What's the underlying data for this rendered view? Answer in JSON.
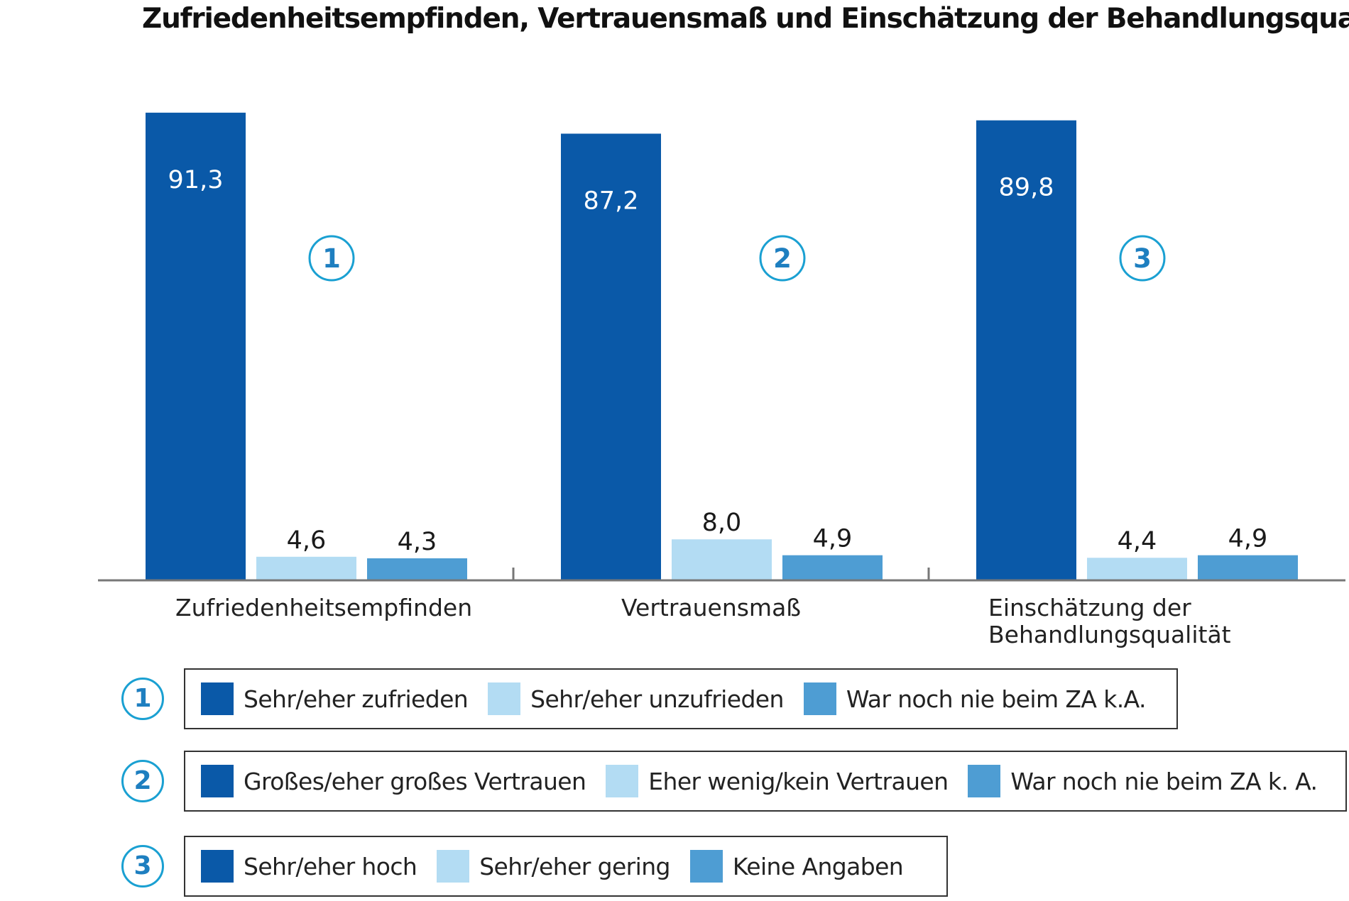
{
  "chart_data": {
    "type": "bar",
    "title": "Zufriedenheitsempfinden, Vertrauensmaß und Einschätzung der Behandlungsqualität",
    "categories": [
      "Zufriedenheitsempfinden",
      "Vertrauensmaß",
      "Einschätzung der Behandlungsqualität"
    ],
    "category_marks": [
      "1",
      "2",
      "3"
    ],
    "series": [
      {
        "values": [
          91.3,
          87.2,
          89.8
        ],
        "labels": [
          "91,3",
          "87,2",
          "89,8"
        ],
        "color": "#0a59a8"
      },
      {
        "values": [
          4.6,
          8.0,
          4.4
        ],
        "labels": [
          "4,6",
          "8,0",
          "4,4"
        ],
        "color": "#b3dcf3"
      },
      {
        "values": [
          4.3,
          4.9,
          4.9
        ],
        "labels": [
          "4,3",
          "4,9",
          "4,9"
        ],
        "color": "#4e9dd3"
      }
    ],
    "ylim": [
      0,
      100
    ],
    "grid": false
  },
  "legends": [
    {
      "number": "1",
      "items": [
        "Sehr/eher zufrieden",
        "Sehr/eher unzufrieden",
        "War noch nie beim ZA k.A."
      ]
    },
    {
      "number": "2",
      "items": [
        "Großes/eher großes Vertrauen",
        "Eher wenig/kein Vertrauen",
        "War noch nie beim ZA k. A."
      ]
    },
    {
      "number": "3",
      "items": [
        "Sehr/eher hoch",
        "Sehr/eher gering",
        "Keine Angaben"
      ]
    }
  ],
  "colors": {
    "accent_ring": "#1aa0d2",
    "accent_text": "#1e7fc0",
    "axis": "#777777"
  }
}
